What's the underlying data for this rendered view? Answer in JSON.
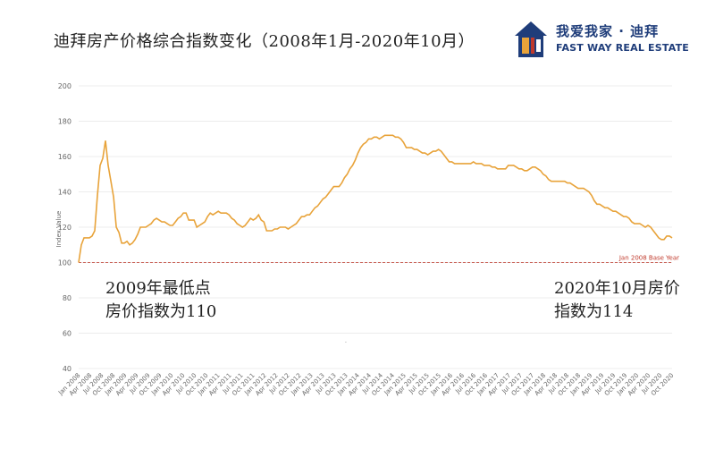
{
  "header": {
    "title": "迪拜房产价格综合指数变化（2008年1月-2020年10月）"
  },
  "logo": {
    "text_cn": "我爱我家 · 迪拜",
    "text_en": "FAST WAY REAL ESTATE",
    "icon": "house-logo-icon",
    "colors": {
      "house": "#1f3d7a",
      "accent": "#e8a33a",
      "red": "#c0392b"
    }
  },
  "annotations": {
    "left_line1": "2009年最低点",
    "left_line2": "房价指数为110",
    "right_line1": "2020年10月房价",
    "right_line2": "指数为114"
  },
  "chart_data": {
    "type": "line",
    "title": "迪拜房产价格综合指数变化（2008年1月-2020年10月）",
    "ylabel": "Index Value",
    "xlabel": "",
    "ylim": [
      40,
      200
    ],
    "yticks": [
      40,
      60,
      80,
      100,
      120,
      140,
      160,
      180,
      200
    ],
    "grid": true,
    "line_color": "#e8a33a",
    "reference_line": {
      "value": 100,
      "label": "Jan 2008 Base Year",
      "color": "#c0392b"
    },
    "xtick_labels": [
      "Jan 2008",
      "Apr 2008",
      "Jul 2008",
      "Oct 2008",
      "Jan 2009",
      "Apr 2009",
      "Jul 2009",
      "Oct 2009",
      "Jan 2010",
      "Apr 2010",
      "Jul 2010",
      "Oct 2010",
      "Jan 2011",
      "Apr 2011",
      "Jul 2011",
      "Oct 2011",
      "Jan 2012",
      "Apr 2012",
      "Jul 2012",
      "Oct 2012",
      "Jan 2013",
      "Apr 2013",
      "Jul 2013",
      "Oct 2013",
      "Jan 2014",
      "Apr 2014",
      "Jul 2014",
      "Oct 2014",
      "Jan 2015",
      "Apr 2015",
      "Jul 2015",
      "Oct 2015",
      "Jan 2016",
      "Apr 2016",
      "Jul 2016",
      "Oct 2016",
      "Jan 2017",
      "Apr 2017",
      "Jul 2017",
      "Oct 2017",
      "Jan 2018",
      "Apr 2018",
      "Jul 2018",
      "Oct 2018",
      "Jan 2019",
      "Apr 2019",
      "Jul 2019",
      "Oct 2019",
      "Jan 2020",
      "Apr 2020",
      "Jul 2020",
      "Oct 2020"
    ],
    "series": [
      {
        "values": [
          100,
          110,
          114,
          114,
          114,
          115,
          118,
          138,
          155,
          159,
          169,
          155,
          146,
          137,
          120,
          117,
          111,
          111,
          112,
          110,
          111,
          113,
          116,
          120,
          120,
          120,
          121,
          122,
          124,
          125,
          124,
          123,
          123,
          122,
          121,
          121,
          123,
          125,
          126,
          128,
          128,
          124,
          124,
          124,
          120,
          121,
          122,
          123,
          126,
          128,
          127,
          128,
          129,
          128,
          128,
          128,
          127,
          125,
          124,
          122,
          121,
          120,
          121,
          123,
          125,
          124,
          125,
          127,
          124,
          123,
          118,
          118,
          118,
          119,
          119,
          120,
          120,
          120,
          119,
          120,
          121,
          122,
          124,
          126,
          126,
          127,
          127,
          129,
          131,
          132,
          134,
          136,
          137,
          139,
          141,
          143,
          143,
          143,
          145,
          148,
          150,
          153,
          155,
          158,
          162,
          165,
          167,
          168,
          170,
          170,
          171,
          171,
          170,
          171,
          172,
          172,
          172,
          172,
          171,
          171,
          170,
          168,
          165,
          165,
          165,
          164,
          164,
          163,
          162,
          162,
          161,
          162,
          163,
          163,
          164,
          163,
          161,
          159,
          157,
          157,
          156,
          156,
          156,
          156,
          156,
          156,
          156,
          157,
          156,
          156,
          156,
          155,
          155,
          155,
          154,
          154,
          153,
          153,
          153,
          153,
          155,
          155,
          155,
          154,
          153,
          153,
          152,
          152,
          153,
          154,
          154,
          153,
          152,
          150,
          149,
          147,
          146,
          146,
          146,
          146,
          146,
          146,
          145,
          145,
          144,
          143,
          142,
          142,
          142,
          141,
          140,
          138,
          135,
          133,
          133,
          132,
          131,
          131,
          130,
          129,
          129,
          128,
          127,
          126,
          126,
          125,
          123,
          122,
          122,
          122,
          121,
          120,
          121,
          120,
          118,
          116,
          114,
          113,
          113,
          115,
          115,
          114
        ]
      }
    ]
  }
}
